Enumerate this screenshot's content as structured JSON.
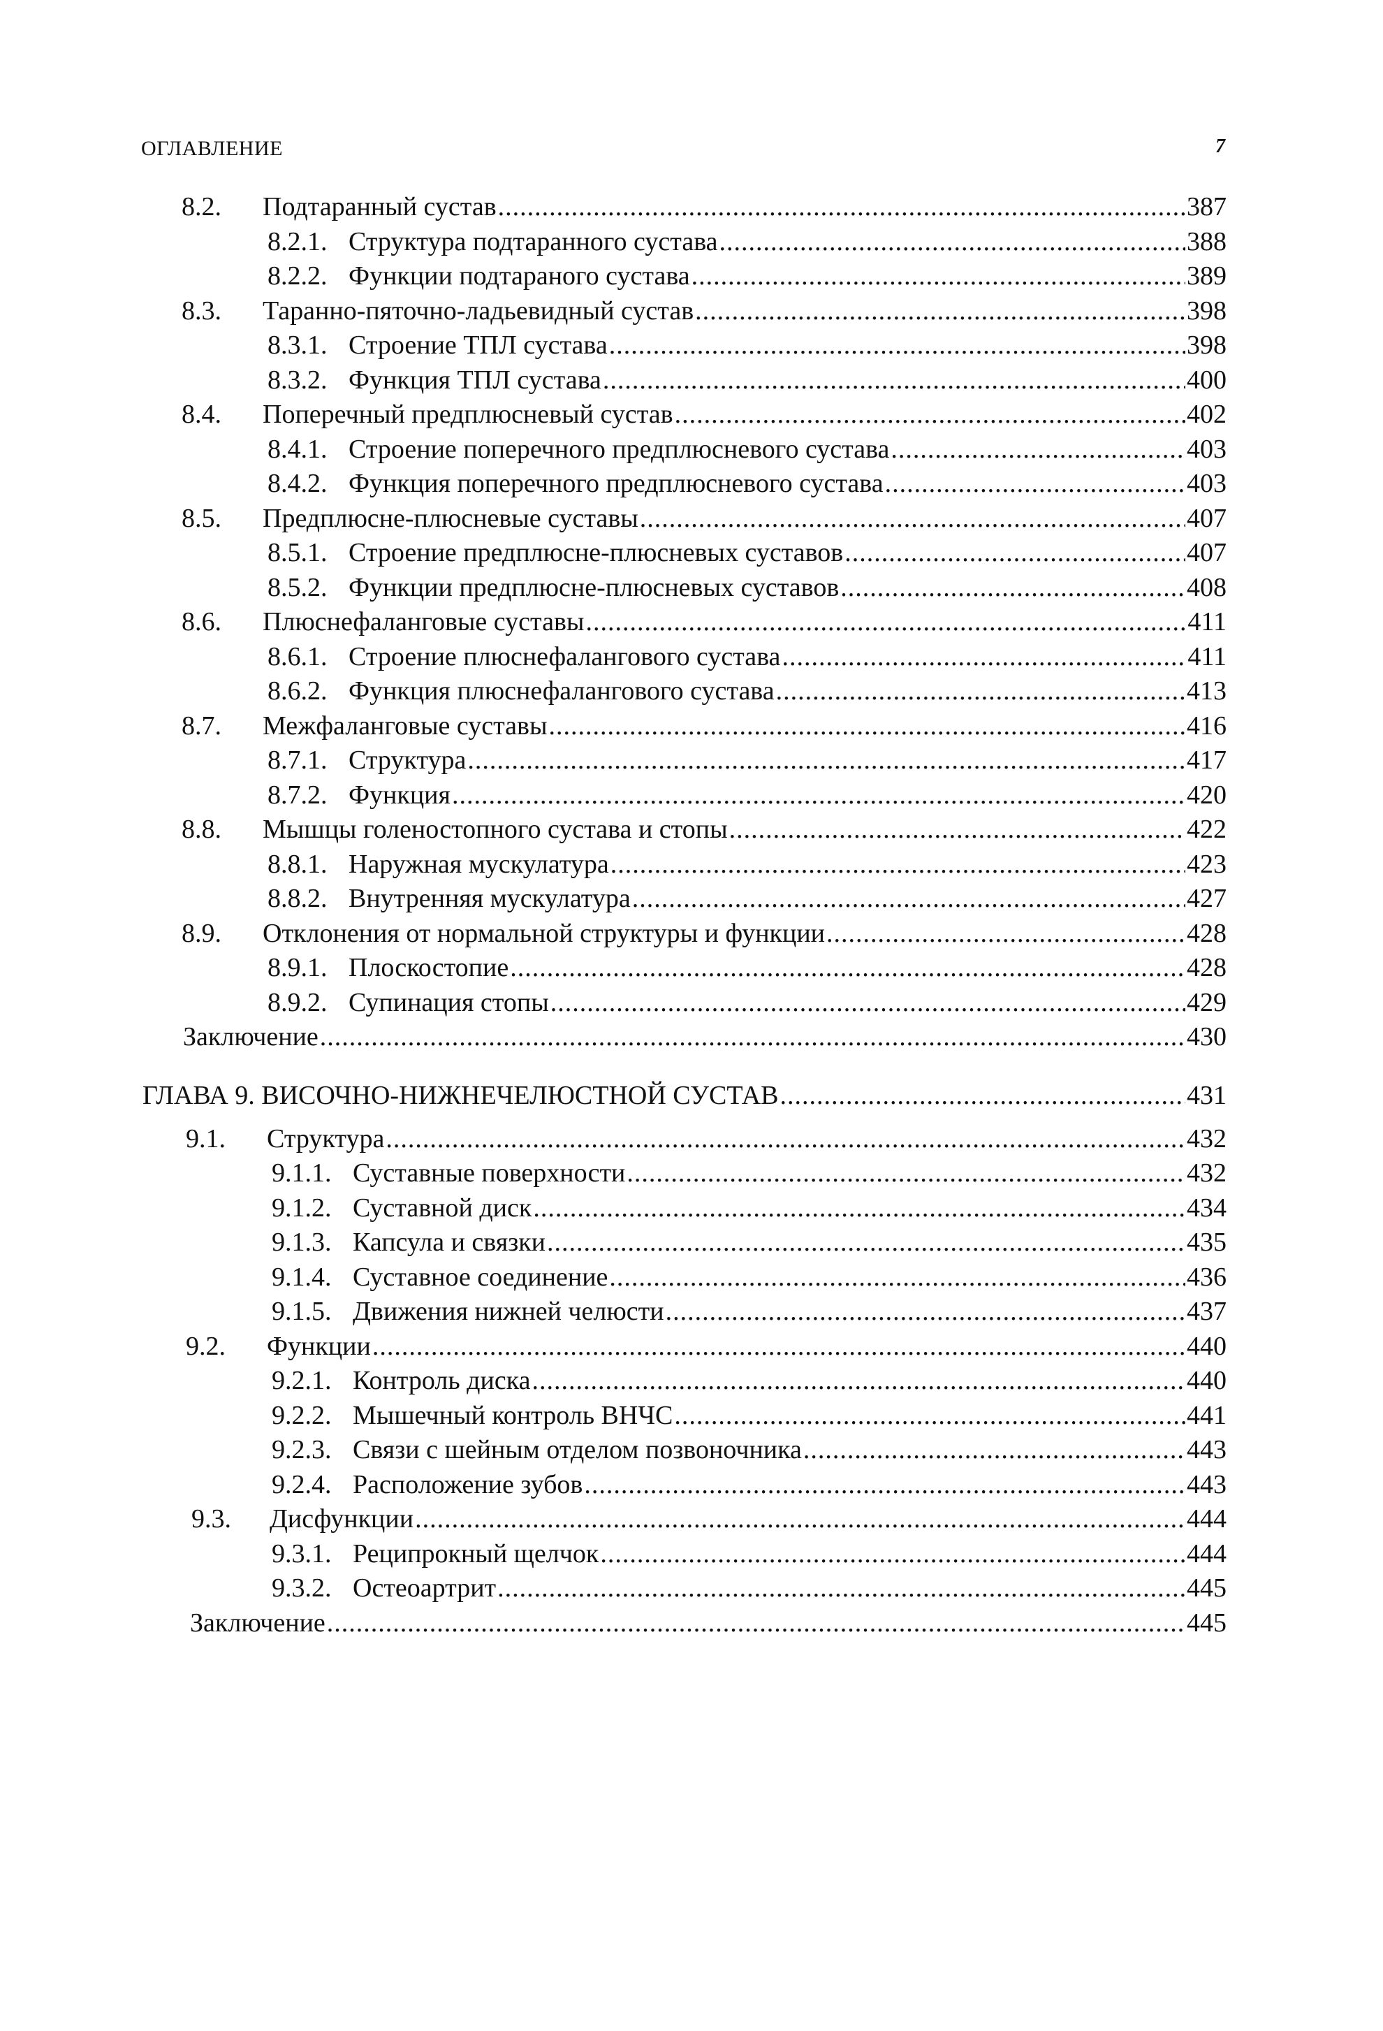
{
  "header": {
    "title": "ОГЛАВЛЕНИЕ",
    "page_number": "7"
  },
  "entries": [
    {
      "level": 1,
      "num": "8.2.",
      "title": "Подтаранный сустав",
      "page": "387"
    },
    {
      "level": 2,
      "num": "8.2.1.",
      "title": "Структура подтаранного сустава",
      "page": "388"
    },
    {
      "level": 2,
      "num": "8.2.2.",
      "title": "Функции подтараного сустава",
      "page": "389"
    },
    {
      "level": 1,
      "num": "8.3.",
      "title": "Таранно-пяточно-ладьевидный сустав",
      "page": "398"
    },
    {
      "level": 2,
      "num": "8.3.1.",
      "title": "Строение ТПЛ сустава",
      "page": "398"
    },
    {
      "level": 2,
      "num": "8.3.2.",
      "title": "Функция ТПЛ сустава",
      "page": "400"
    },
    {
      "level": 1,
      "num": "8.4.",
      "title": "Поперечный предплюсневый сустав",
      "page": "402"
    },
    {
      "level": 2,
      "num": "8.4.1.",
      "title": "Строение поперечного предплюсневого сустава",
      "page": "403"
    },
    {
      "level": 2,
      "num": "8.4.2.",
      "title": "Функция поперечного предплюсневого сустава",
      "page": "403"
    },
    {
      "level": 1,
      "num": "8.5.",
      "title": "Предплюсне-плюсневые суставы",
      "page": "407"
    },
    {
      "level": 2,
      "num": "8.5.1.",
      "title": "Строение предплюсне-плюсневых суставов",
      "page": "407"
    },
    {
      "level": 2,
      "num": "8.5.2.",
      "title": "Функции предплюсне-плюсневых суставов",
      "page": "408"
    },
    {
      "level": 1,
      "num": "8.6.",
      "title": "Плюснефаланговые суставы",
      "page": "411"
    },
    {
      "level": 2,
      "num": "8.6.1.",
      "title": "Строение плюснефалангового сустава",
      "page": "411"
    },
    {
      "level": 2,
      "num": "8.6.2.",
      "title": "Функция плюснефалангового сустава",
      "page": "413"
    },
    {
      "level": 1,
      "num": "8.7.",
      "title": "Межфаланговые суставы",
      "page": "416"
    },
    {
      "level": 2,
      "num": "8.7.1.",
      "title": "Структура",
      "page": "417"
    },
    {
      "level": 2,
      "num": "8.7.2.",
      "title": "Функция",
      "page": "420"
    },
    {
      "level": 1,
      "num": "8.8.",
      "title": "Мышцы голеностопного сустава и стопы",
      "page": "422"
    },
    {
      "level": 2,
      "num": "8.8.1.",
      "title": "Наружная мускулатура",
      "page": "423"
    },
    {
      "level": 2,
      "num": "8.8.2.",
      "title": "Внутренняя мускулатура",
      "page": "427"
    },
    {
      "level": 1,
      "num": "8.9.",
      "title": "Отклонения от нормальной структуры и функции",
      "page": "428"
    },
    {
      "level": 2,
      "num": "8.9.1.",
      "title": "Плоскостопие",
      "page": "428"
    },
    {
      "level": 2,
      "num": "8.9.2.",
      "title": "Супинация стопы",
      "page": "429"
    },
    {
      "level": 0,
      "num": "",
      "title": "Заключение",
      "page": "430"
    },
    {
      "level": -1,
      "num": "",
      "title": "ГЛАВА 9. ВИСОЧНО-НИЖНЕЧЕЛЮСТНОЙ СУСТАВ",
      "page": "431"
    },
    {
      "level": 1,
      "num": "9.1.",
      "title": "Структура",
      "page": "432"
    },
    {
      "level": 2,
      "num": "9.1.1.",
      "title": "Суставные поверхности",
      "page": "432"
    },
    {
      "level": 2,
      "num": "9.1.2.",
      "title": "Суставной диск",
      "page": "434"
    },
    {
      "level": 2,
      "num": "9.1.3.",
      "title": "Капсула и связки",
      "page": "435"
    },
    {
      "level": 2,
      "num": "9.1.4.",
      "title": "Суставное соединение",
      "page": "436"
    },
    {
      "level": 2,
      "num": "9.1.5.",
      "title": "Движения нижней челюсти",
      "page": "437"
    },
    {
      "level": 1,
      "num": "9.2.",
      "title": "Функции",
      "page": "440"
    },
    {
      "level": 2,
      "num": "9.2.1.",
      "title": "Контроль диска",
      "page": "440"
    },
    {
      "level": 2,
      "num": "9.2.2.",
      "title": "Мышечный контроль ВНЧС",
      "page": "441"
    },
    {
      "level": 2,
      "num": "9.2.3.",
      "title": "Связи с шейным отделом позвоночника",
      "page": "443"
    },
    {
      "level": 2,
      "num": "9.2.4.",
      "title": "Расположение зубов",
      "page": "443"
    },
    {
      "level": 1,
      "num": "9.3.",
      "title": "Дисфункции",
      "page": "444"
    },
    {
      "level": 2,
      "num": "9.3.1.",
      "title": "Реципрокный щелчок",
      "page": "444"
    },
    {
      "level": 2,
      "num": "9.3.2.",
      "title": "Остеоартрит",
      "page": "445"
    },
    {
      "level": 0,
      "num": "",
      "title": "Заключение",
      "page": "445"
    }
  ]
}
